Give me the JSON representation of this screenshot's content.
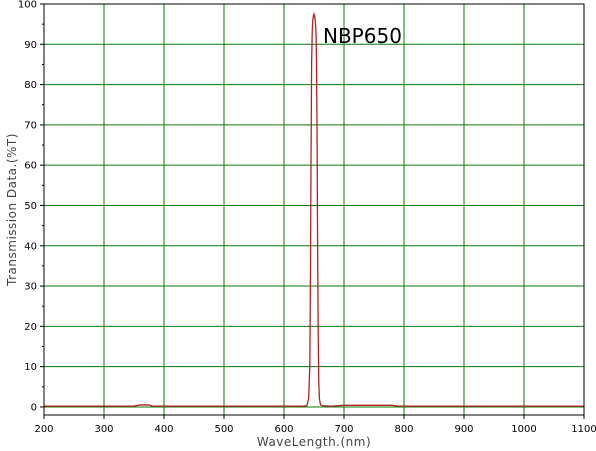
{
  "chart_data": {
    "type": "line",
    "title": "",
    "xlabel": "WaveLength.(nm)",
    "ylabel": "Transmission Data.(%T)",
    "xlim": [
      200,
      1100
    ],
    "ylim": [
      -2,
      100
    ],
    "xticks": [
      200,
      300,
      400,
      500,
      600,
      700,
      800,
      900,
      1000,
      1100
    ],
    "yticks": [
      0,
      10,
      20,
      30,
      40,
      50,
      60,
      70,
      80,
      90,
      100
    ],
    "grid": true,
    "grid_color": "#0a7a0a",
    "line_color": "#b22222",
    "annotations": [
      {
        "text": "NBP650",
        "x": 665,
        "y": 92
      }
    ],
    "series": [
      {
        "name": "",
        "points": [
          [
            200,
            0.2
          ],
          [
            350,
            0.2
          ],
          [
            360,
            0.5
          ],
          [
            375,
            0.5
          ],
          [
            380,
            0.2
          ],
          [
            630,
            0.2
          ],
          [
            638,
            0.3
          ],
          [
            641,
            2
          ],
          [
            643,
            10
          ],
          [
            644,
            30
          ],
          [
            645,
            60
          ],
          [
            646,
            85
          ],
          [
            647,
            93
          ],
          [
            648,
            96
          ],
          [
            649,
            97
          ],
          [
            650,
            97.5
          ],
          [
            651,
            97
          ],
          [
            652,
            96
          ],
          [
            653,
            94
          ],
          [
            654,
            88
          ],
          [
            655,
            70
          ],
          [
            656,
            40
          ],
          [
            657,
            18
          ],
          [
            658,
            6
          ],
          [
            659,
            2
          ],
          [
            661,
            0.5
          ],
          [
            664,
            0.3
          ],
          [
            680,
            0.2
          ],
          [
            700,
            0.4
          ],
          [
            780,
            0.4
          ],
          [
            790,
            0.2
          ],
          [
            1100,
            0.2
          ]
        ]
      }
    ]
  }
}
